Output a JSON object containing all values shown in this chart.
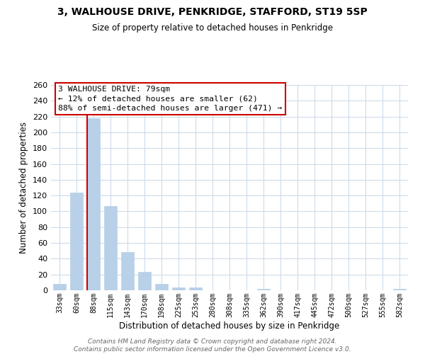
{
  "title": "3, WALHOUSE DRIVE, PENKRIDGE, STAFFORD, ST19 5SP",
  "subtitle": "Size of property relative to detached houses in Penkridge",
  "xlabel": "Distribution of detached houses by size in Penkridge",
  "ylabel": "Number of detached properties",
  "bar_labels": [
    "33sqm",
    "60sqm",
    "88sqm",
    "115sqm",
    "143sqm",
    "170sqm",
    "198sqm",
    "225sqm",
    "253sqm",
    "280sqm",
    "308sqm",
    "335sqm",
    "362sqm",
    "390sqm",
    "417sqm",
    "445sqm",
    "472sqm",
    "500sqm",
    "527sqm",
    "555sqm",
    "582sqm"
  ],
  "bar_values": [
    8,
    124,
    218,
    107,
    48,
    23,
    8,
    4,
    4,
    0,
    0,
    0,
    2,
    0,
    0,
    0,
    0,
    0,
    0,
    0,
    2
  ],
  "bar_color": "#b8d0e8",
  "vline_color": "#cc0000",
  "vline_index": 2,
  "ylim": [
    0,
    260
  ],
  "yticks": [
    0,
    20,
    40,
    60,
    80,
    100,
    120,
    140,
    160,
    180,
    200,
    220,
    240,
    260
  ],
  "annotation_line1": "3 WALHOUSE DRIVE: 79sqm",
  "annotation_line2": "← 12% of detached houses are smaller (62)",
  "annotation_line3": "88% of semi-detached houses are larger (471) →",
  "annotation_box_edge": "#cc0000",
  "annotation_box_facecolor": "#ffffff",
  "footnote": "Contains HM Land Registry data © Crown copyright and database right 2024.\nContains public sector information licensed under the Open Government Licence v3.0.",
  "background_color": "#ffffff",
  "grid_color": "#c8d8e8",
  "bar_width": 0.75
}
